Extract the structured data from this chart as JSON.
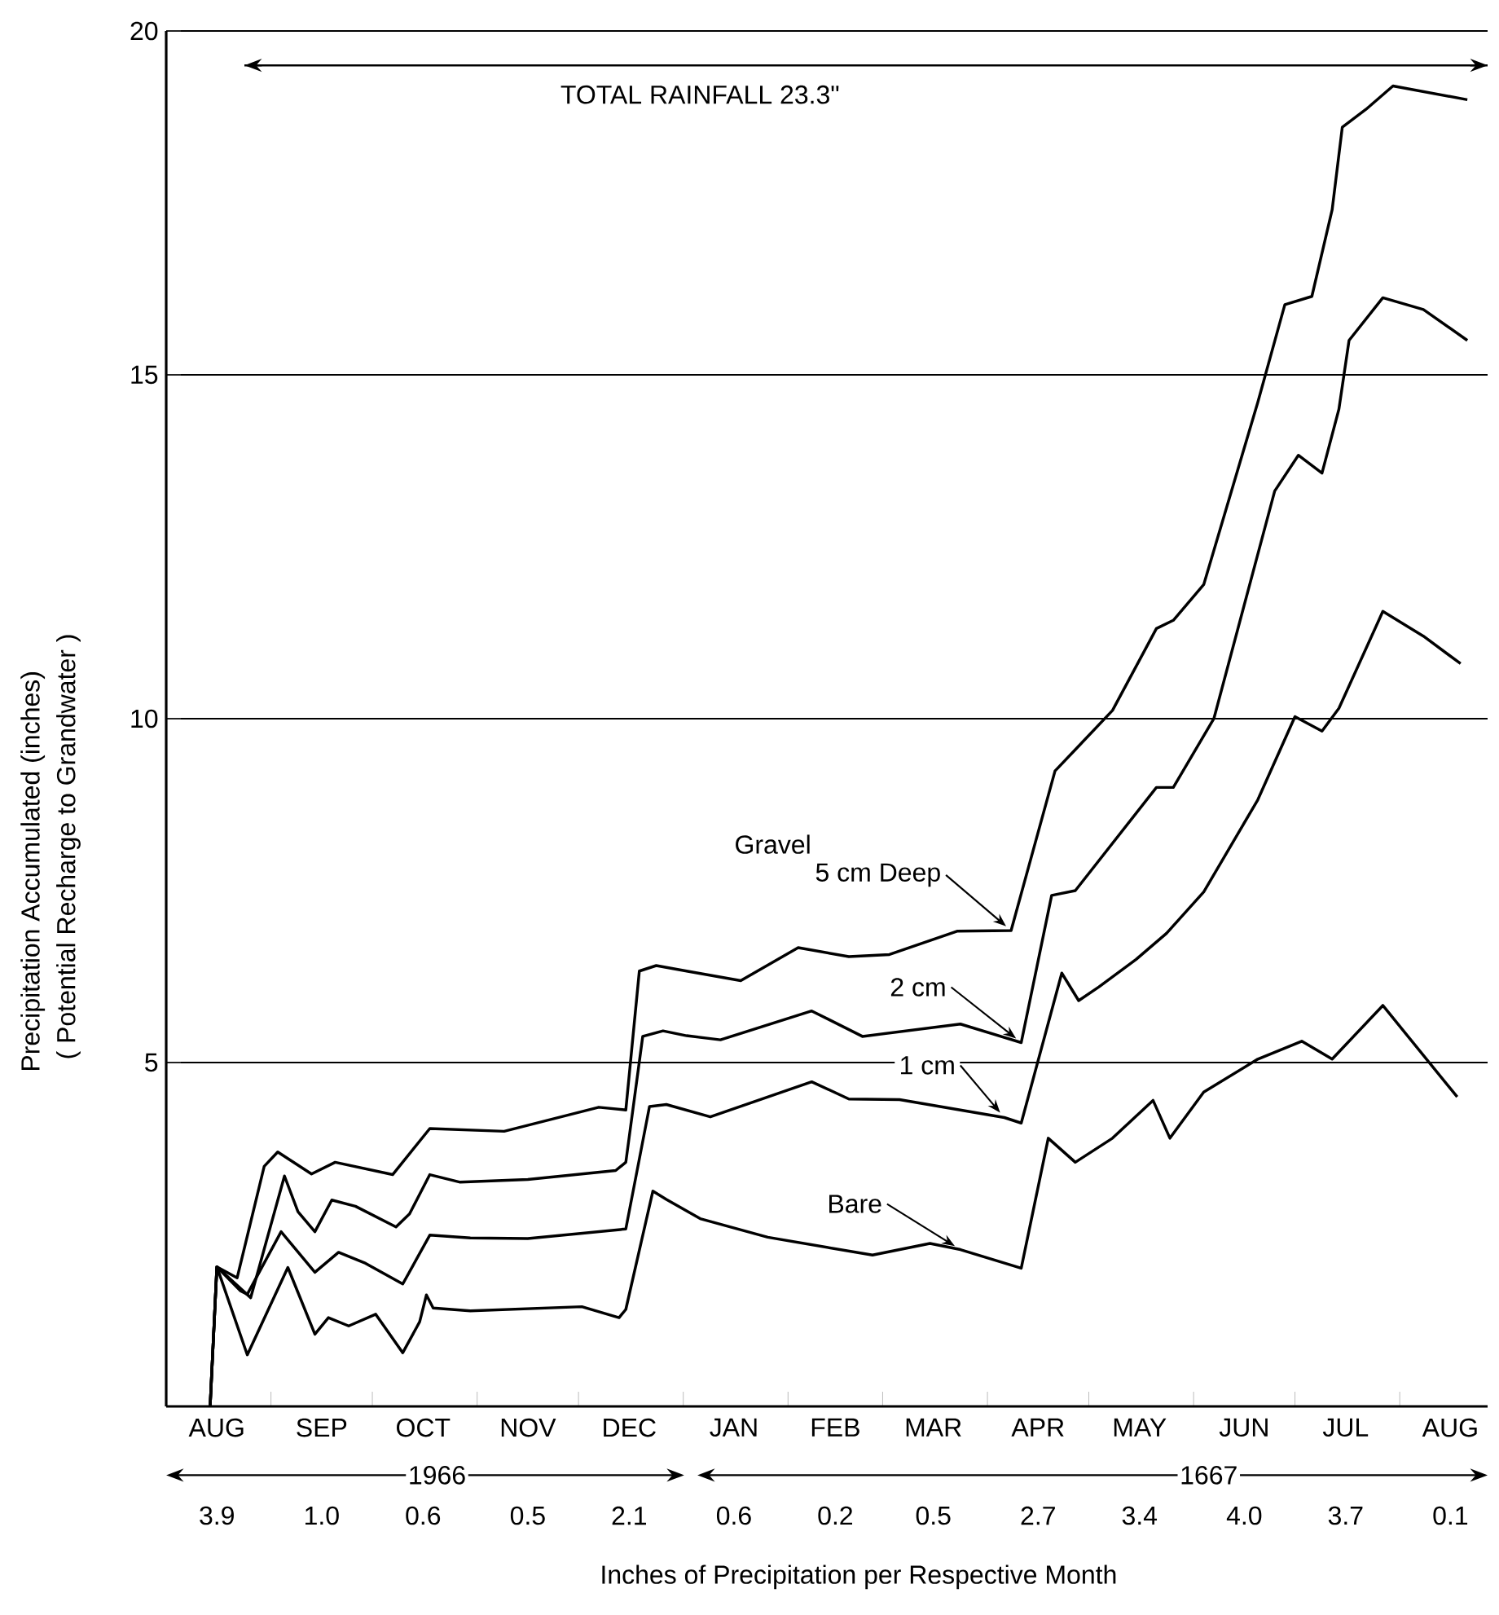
{
  "chart_data": {
    "type": "line",
    "xlabel": "Inches of Precipitation per Respective Month",
    "ylabel": "Precipitation Accumulated (inches)",
    "ref_lines": [
      {
        "axis": "y",
        "value": 19.5,
        "label": "TOTAL RAINFALL 23.3\"",
        "color": "#000000"
      }
    ],
    "annotations": [
      "Gravel",
      "1966",
      "1667",
      "( Potential Recharge to Grandwater )",
      "3.9",
      "1.0",
      "0.6",
      "0.5",
      "2.1",
      "0.6",
      "0.2",
      "0.5",
      "2.7",
      "3.4",
      "4.0",
      "3.7",
      "0.1"
    ],
    "xlim": [
      "1966-08-01",
      "1967-08-27"
    ],
    "xticks": [
      {
        "value": "1966-08-16",
        "label": "AUG"
      },
      {
        "value": "1966-09-16",
        "label": "SEP"
      },
      {
        "value": "1966-10-16",
        "label": "OCT"
      },
      {
        "value": "1966-11-16",
        "label": "NOV"
      },
      {
        "value": "1966-12-16",
        "label": "DEC"
      },
      {
        "value": "1967-01-16",
        "label": "JAN"
      },
      {
        "value": "1967-02-15",
        "label": "FEB"
      },
      {
        "value": "1967-03-16",
        "label": "MAR"
      },
      {
        "value": "1967-04-16",
        "label": "APR"
      },
      {
        "value": "1967-05-16",
        "label": "MAY"
      },
      {
        "value": "1967-06-16",
        "label": "JUN"
      },
      {
        "value": "1967-07-16",
        "label": "JUL"
      },
      {
        "value": "1967-08-16",
        "label": "AUG"
      },
      {
        "value": "1966-09-01",
        "label": null
      },
      {
        "value": "1966-10-01",
        "label": null
      },
      {
        "value": "1966-11-01",
        "label": null
      },
      {
        "value": "1966-12-01",
        "label": null
      },
      {
        "value": "1967-01-01",
        "label": null
      },
      {
        "value": "1967-02-01",
        "label": null
      },
      {
        "value": "1967-03-01",
        "label": null
      },
      {
        "value": "1967-04-01",
        "label": null
      },
      {
        "value": "1967-05-01",
        "label": null
      },
      {
        "value": "1967-06-01",
        "label": null
      },
      {
        "value": "1967-07-01",
        "label": null
      },
      {
        "value": "1967-08-01",
        "label": null
      }
    ],
    "ylim": [
      0,
      20
    ],
    "yticks": [
      5,
      10,
      15,
      20
    ],
    "grid": "y",
    "legend": false,
    "line_style": "solid",
    "series": [
      {
        "name": "5 cm Deep",
        "color": "#000000",
        "x": [
          "1966-08-14",
          "1966-08-16",
          "1966-08-22",
          "1966-08-30",
          "1966-09-03",
          "1966-09-13",
          "1966-09-20",
          "1966-10-07",
          "1966-10-18",
          "1966-11-09",
          "1966-12-07",
          "1966-12-15",
          "1966-12-19",
          "1966-12-24",
          "1967-01-02",
          "1967-01-18",
          "1967-02-04",
          "1967-02-19",
          "1967-03-03",
          "1967-03-23",
          "1967-04-08",
          "1967-04-21",
          "1967-04-27",
          "1967-05-08",
          "1967-05-21",
          "1967-05-26",
          "1967-06-04",
          "1967-06-20",
          "1967-06-28",
          "1967-07-06",
          "1967-07-12",
          "1967-07-15",
          "1967-07-22",
          "1967-07-30",
          "1967-08-21"
        ],
        "values": [
          0,
          2.03,
          1.87,
          3.49,
          3.7,
          3.38,
          3.55,
          3.37,
          4.04,
          4.0,
          4.35,
          4.31,
          6.33,
          6.41,
          6.33,
          6.19,
          6.67,
          6.54,
          6.57,
          6.91,
          6.92,
          9.24,
          9.55,
          10.12,
          11.31,
          11.43,
          11.95,
          14.6,
          16.02,
          16.14,
          17.4,
          18.6,
          18.86,
          19.2,
          19.0
        ]
      },
      {
        "name": "2 cm",
        "color": "#000000",
        "x": [
          "1966-08-14",
          "1966-08-16",
          "1966-08-26",
          "1966-09-05",
          "1966-09-09",
          "1966-09-14",
          "1966-09-19",
          "1966-09-26",
          "1966-10-08",
          "1966-10-12",
          "1966-10-18",
          "1966-10-27",
          "1966-11-16",
          "1966-12-12",
          "1966-12-15",
          "1966-12-20",
          "1966-12-26",
          "1967-01-02",
          "1967-01-12",
          "1967-02-08",
          "1967-02-23",
          "1967-03-24",
          "1967-04-11",
          "1967-04-20",
          "1967-04-27",
          "1967-05-21",
          "1967-05-26",
          "1967-06-07",
          "1967-06-25",
          "1967-07-02",
          "1967-07-09",
          "1967-07-14",
          "1967-07-17",
          "1967-07-27",
          "1967-08-08",
          "1967-08-21"
        ],
        "values": [
          0,
          2.03,
          1.58,
          3.35,
          2.83,
          2.54,
          3.0,
          2.91,
          2.61,
          2.8,
          3.37,
          3.26,
          3.3,
          3.43,
          3.55,
          5.38,
          5.46,
          5.39,
          5.33,
          5.75,
          5.38,
          5.56,
          5.29,
          7.43,
          7.5,
          9.0,
          9.0,
          10.0,
          13.31,
          13.83,
          13.57,
          14.5,
          15.5,
          16.12,
          15.95,
          15.5
        ]
      },
      {
        "name": "1 cm",
        "color": "#000000",
        "x": [
          "1966-08-14",
          "1966-08-16",
          "1966-08-23",
          "1966-08-25",
          "1966-09-04",
          "1966-09-14",
          "1966-09-21",
          "1966-09-29",
          "1966-10-10",
          "1966-10-18",
          "1966-10-30",
          "1966-11-16",
          "1966-12-15",
          "1966-12-22",
          "1966-12-27",
          "1967-01-09",
          "1967-02-08",
          "1967-02-19",
          "1967-03-06",
          "1967-04-06",
          "1967-04-11",
          "1967-04-23",
          "1967-04-28",
          "1967-05-04",
          "1967-05-15",
          "1967-05-24",
          "1967-06-04",
          "1967-06-20",
          "1967-07-01",
          "1967-07-09",
          "1967-07-14",
          "1967-07-27",
          "1967-08-08",
          "1967-08-19"
        ],
        "values": [
          0,
          2.03,
          1.68,
          1.63,
          2.54,
          1.95,
          2.24,
          2.08,
          1.78,
          2.49,
          2.45,
          2.44,
          2.58,
          4.36,
          4.39,
          4.21,
          4.72,
          4.47,
          4.46,
          4.2,
          4.12,
          6.3,
          5.9,
          6.1,
          6.5,
          6.88,
          7.48,
          8.82,
          10.03,
          9.82,
          10.15,
          11.56,
          11.2,
          10.8
        ]
      },
      {
        "name": "Bare",
        "color": "#000000",
        "x": [
          "1966-08-14",
          "1966-08-16",
          "1966-08-25",
          "1966-09-06",
          "1966-09-14",
          "1966-09-18",
          "1966-09-24",
          "1966-10-02",
          "1966-10-10",
          "1966-10-15",
          "1966-10-17",
          "1966-10-19",
          "1966-10-30",
          "1966-12-02",
          "1966-12-13",
          "1966-12-15",
          "1966-12-23",
          "1966-12-27",
          "1967-01-06",
          "1967-01-26",
          "1967-02-26",
          "1967-03-15",
          "1967-03-24",
          "1967-04-11",
          "1967-04-19",
          "1967-04-27",
          "1967-05-08",
          "1967-05-20",
          "1967-05-25",
          "1967-06-04",
          "1967-06-20",
          "1967-07-03",
          "1967-07-12",
          "1967-07-27",
          "1967-08-18"
        ],
        "values": [
          0,
          2.03,
          0.75,
          2.02,
          1.05,
          1.29,
          1.17,
          1.34,
          0.78,
          1.23,
          1.62,
          1.43,
          1.39,
          1.45,
          1.29,
          1.41,
          3.13,
          3.01,
          2.73,
          2.46,
          2.2,
          2.37,
          2.28,
          2.01,
          3.9,
          3.55,
          3.9,
          4.45,
          3.9,
          4.57,
          5.05,
          5.31,
          5.05,
          5.83,
          4.5
        ]
      }
    ]
  }
}
